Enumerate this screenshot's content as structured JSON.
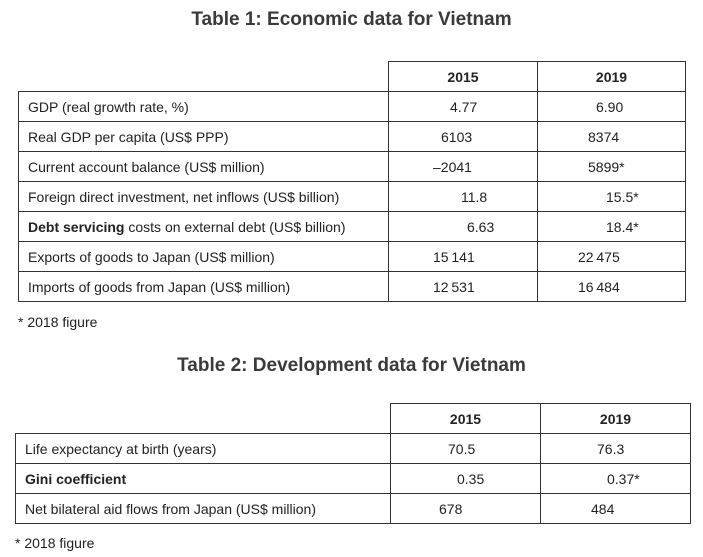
{
  "table1": {
    "title": "Table 1: Economic data for Vietnam",
    "headers": [
      "2015",
      "2019"
    ],
    "rows": [
      {
        "label": "GDP (real growth rate, %)",
        "v2015": "4.77",
        "v2019": "6.90"
      },
      {
        "label": "Real GDP per capita (US$ PPP)",
        "v2015": "6103",
        "v2019": "8374"
      },
      {
        "label": "Current account balance (US$ million)",
        "v2015": "–2041",
        "v2019": "5899*"
      },
      {
        "label": "Foreign direct investment, net inflows (US$ billion)",
        "v2015": "11.8",
        "v2019": "15.5*"
      },
      {
        "label_bold": "Debt servicing",
        "label": " costs on external debt (US$ billion)",
        "v2015": "6.63",
        "v2019": "18.4*"
      },
      {
        "label": "Exports of goods to Japan (US$ million)",
        "v2015": "15 141",
        "v2019": "22 475"
      },
      {
        "label": "Imports of goods from Japan (US$ million)",
        "v2015": "12 531",
        "v2019": "16 484"
      }
    ],
    "footnote": "* 2018 figure"
  },
  "table2": {
    "title": "Table 2: Development data for Vietnam",
    "headers": [
      "2015",
      "2019"
    ],
    "rows": [
      {
        "label": "Life expectancy at birth (years)",
        "v2015": "70.5",
        "v2019": "76.3"
      },
      {
        "label_bold": "Gini coefficient",
        "v2015": "0.35",
        "v2019": "0.37*"
      },
      {
        "label": "Net bilateral aid flows from Japan (US$ million)",
        "v2015": "678",
        "v2019": "484"
      }
    ],
    "footnote": "* 2018 figure"
  }
}
